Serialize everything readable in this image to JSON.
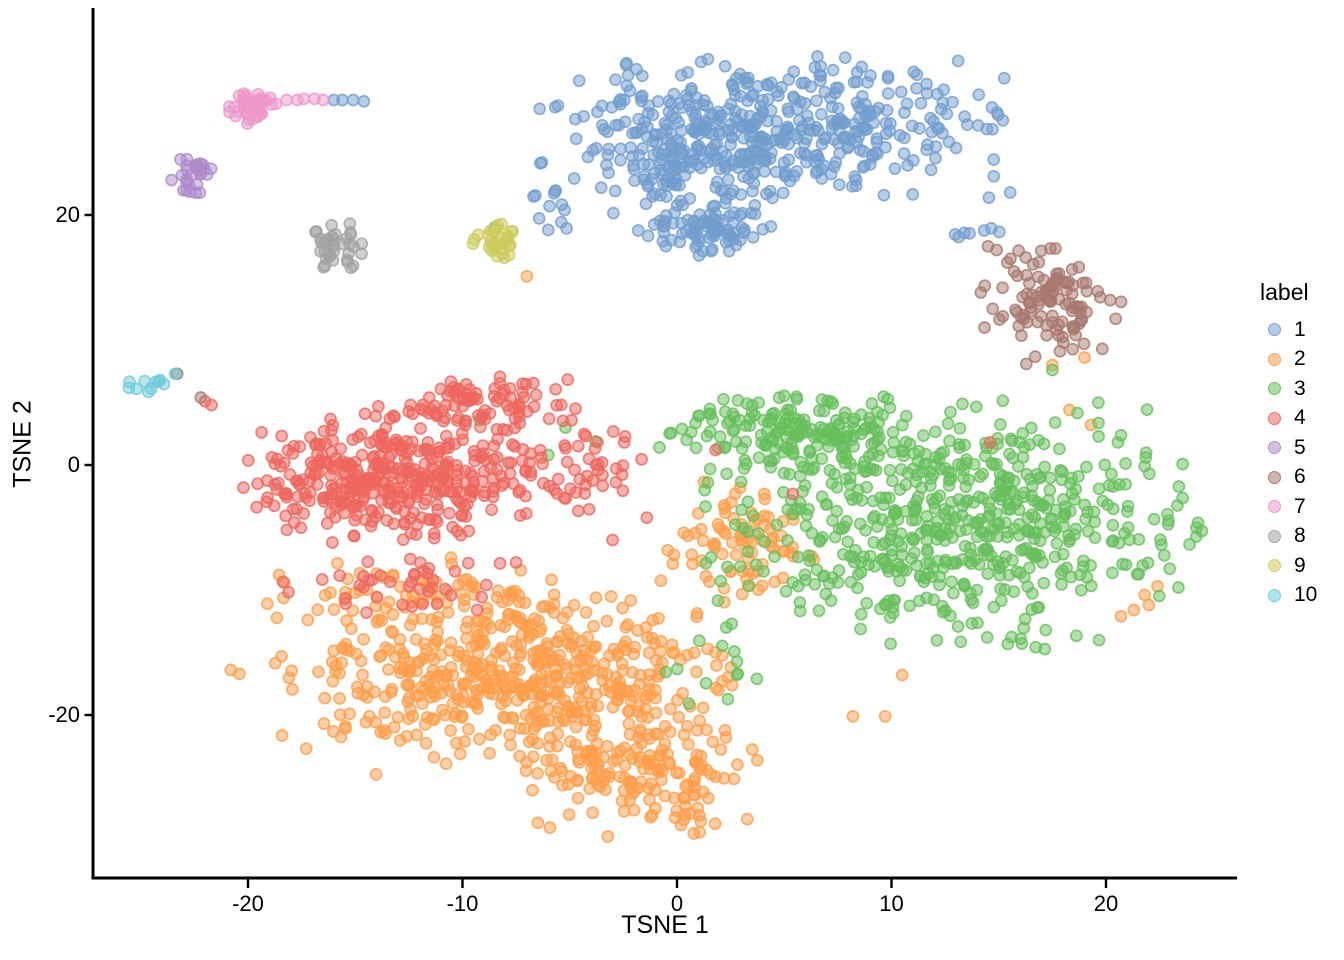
{
  "chart_data": {
    "type": "scatter",
    "title": "",
    "xlabel": "TSNE 1",
    "ylabel": "TSNE 2",
    "x_ticks": [
      -20,
      -10,
      0,
      10,
      20
    ],
    "y_ticks": [
      -20,
      0,
      20
    ],
    "xlim": [
      -26.5,
      26.5
    ],
    "ylim": [
      -32.5,
      34.5
    ],
    "grid": false,
    "legend": {
      "title": "label",
      "position": "right",
      "entries": [
        {
          "label": "1",
          "color": "#729ECE"
        },
        {
          "label": "2",
          "color": "#FF9E4A"
        },
        {
          "label": "3",
          "color": "#67BF5C"
        },
        {
          "label": "4",
          "color": "#ED665D"
        },
        {
          "label": "5",
          "color": "#AD8BC9"
        },
        {
          "label": "6",
          "color": "#A8786E"
        },
        {
          "label": "7",
          "color": "#ED97CA"
        },
        {
          "label": "8",
          "color": "#A2A2A2"
        },
        {
          "label": "9",
          "color": "#CDCC5D"
        },
        {
          "label": "10",
          "color": "#6DCCDA"
        }
      ]
    },
    "point_style": {
      "radius_px": 5.5,
      "fill_opacity": 0.5,
      "stroke_opacity": 0.8,
      "stroke_width": 1.7
    },
    "clusters": [
      {
        "label": "1",
        "color": "#729ECE",
        "blobs": [
          [
            4.6,
            27.0,
            5.0,
            2.6,
            420,
            11
          ],
          [
            0.8,
            24.3,
            2.2,
            2.0,
            110,
            12
          ],
          [
            1.2,
            18.7,
            1.5,
            1.1,
            85,
            13
          ],
          [
            -5.8,
            20.5,
            0.55,
            1.1,
            12,
            14
          ],
          [
            13.9,
            18.6,
            0.55,
            0.28,
            7,
            15
          ]
        ],
        "points": [
          [
            -16.0,
            29.2
          ],
          [
            -15.6,
            29.2
          ],
          [
            -15.1,
            29.2
          ],
          [
            -14.6,
            29.1
          ],
          [
            -8.5,
            19.0
          ],
          [
            -6.3,
            24.2
          ],
          [
            -6.4,
            28.5
          ]
        ]
      },
      {
        "label": "2",
        "color": "#FF9E4A",
        "blobs": [
          [
            -7.3,
            -17.0,
            5.2,
            3.6,
            560,
            21
          ],
          [
            -1.5,
            -24.8,
            2.4,
            2.3,
            150,
            22
          ],
          [
            2.9,
            -6.5,
            1.7,
            2.4,
            85,
            23
          ],
          [
            -12.2,
            -10.3,
            3.4,
            1.4,
            55,
            24
          ]
        ],
        "points": [
          [
            8.2,
            -20.1
          ],
          [
            9.7,
            -20.1
          ],
          [
            -20.8,
            -16.4
          ],
          [
            -20.4,
            -16.7
          ],
          [
            18.3,
            4.4
          ],
          [
            19.3,
            3.2
          ],
          [
            21.8,
            -10.4
          ],
          [
            22.0,
            -11.2
          ],
          [
            21.3,
            -11.6
          ],
          [
            20.7,
            -12.1
          ],
          [
            22.4,
            -9.7
          ],
          [
            17.5,
            8.0
          ],
          [
            19.0,
            8.6
          ],
          [
            -7.0,
            15.1
          ],
          [
            10.5,
            -16.8
          ]
        ]
      },
      {
        "label": "3",
        "color": "#67BF5C",
        "blobs": [
          [
            13.2,
            -4.6,
            5.5,
            4.6,
            620,
            31
          ],
          [
            5.5,
            2.6,
            3.0,
            1.6,
            175,
            32
          ],
          [
            1.2,
            -16.0,
            2.2,
            2.0,
            13,
            33
          ]
        ],
        "points": [
          [
            17.5,
            7.6
          ],
          [
            -5.2,
            3.0
          ],
          [
            -3.8,
            1.9
          ],
          [
            -9.2,
            3.6
          ],
          [
            -6.0,
            0.8
          ],
          [
            2.3,
            -13.0
          ]
        ]
      },
      {
        "label": "4",
        "color": "#ED665D",
        "blobs": [
          [
            -13.2,
            -1.0,
            3.2,
            2.4,
            390,
            41
          ],
          [
            -9.3,
            5.0,
            2.1,
            1.0,
            90,
            42
          ],
          [
            -4.6,
            -0.8,
            2.1,
            2.2,
            55,
            43
          ],
          [
            -12.6,
            -9.6,
            3.0,
            1.3,
            42,
            44
          ]
        ],
        "points": [
          [
            -22.0,
            5.1
          ],
          [
            -21.7,
            4.8
          ],
          [
            14.6,
            1.8
          ],
          [
            5.4,
            -2.3
          ],
          [
            1.8,
            1.2
          ],
          [
            -3.0,
            -6.0
          ]
        ]
      },
      {
        "label": "5",
        "color": "#AD8BC9",
        "blobs": [
          [
            -22.6,
            22.8,
            0.5,
            0.8,
            26,
            51
          ]
        ],
        "points": [
          [
            -22.1,
            24.0
          ],
          [
            -22.3,
            23.6
          ]
        ]
      },
      {
        "label": "6",
        "color": "#A8786E",
        "blobs": [
          [
            17.3,
            13.0,
            1.55,
            2.3,
            108,
            61
          ]
        ],
        "points": [
          [
            14.5,
            17.5
          ],
          [
            14.9,
            17.2
          ],
          [
            -23.3,
            7.3
          ],
          [
            -22.2,
            5.4
          ],
          [
            15.4,
            16.2
          ]
        ]
      },
      {
        "label": "7",
        "color": "#ED97CA",
        "blobs": [
          [
            -19.8,
            28.7,
            0.6,
            0.65,
            44,
            71
          ]
        ],
        "points": [
          [
            -18.2,
            29.2
          ],
          [
            -17.7,
            29.2
          ],
          [
            -17.4,
            29.3
          ],
          [
            -16.9,
            29.3
          ],
          [
            -16.5,
            29.2
          ],
          [
            -18.7,
            28.9
          ]
        ]
      },
      {
        "label": "8",
        "color": "#A2A2A2",
        "blobs": [
          [
            -15.9,
            17.5,
            0.6,
            0.85,
            36,
            81
          ]
        ],
        "points": []
      },
      {
        "label": "9",
        "color": "#CDCC5D",
        "blobs": [
          [
            -8.5,
            17.9,
            0.6,
            0.7,
            32,
            91
          ]
        ],
        "points": []
      },
      {
        "label": "10",
        "color": "#6DCCDA",
        "blobs": [
          [
            -24.6,
            6.35,
            0.45,
            0.35,
            8,
            101
          ]
        ],
        "points": [
          [
            -25.2,
            6.1
          ],
          [
            -23.4,
            7.3
          ],
          [
            -24.1,
            6.8
          ]
        ]
      }
    ]
  }
}
